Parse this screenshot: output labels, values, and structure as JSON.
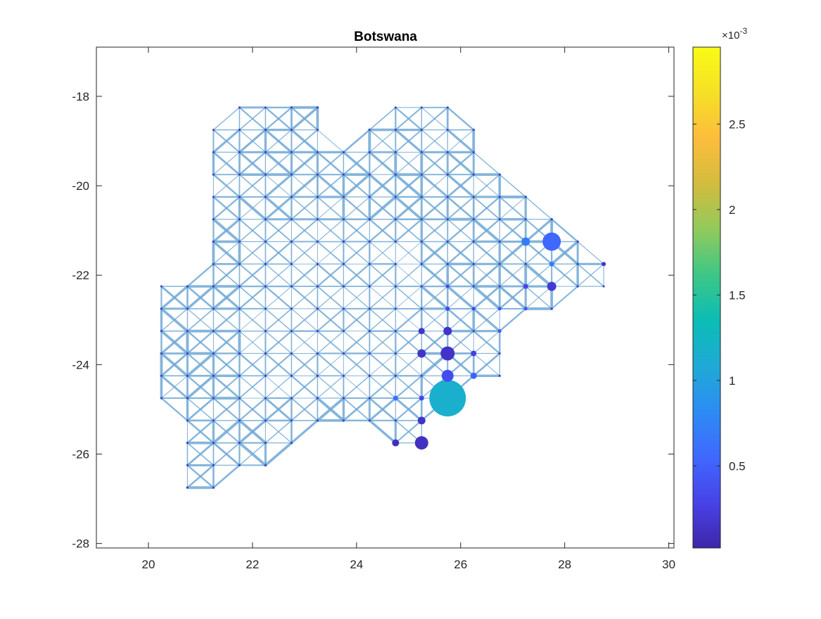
{
  "chart_data": {
    "type": "scatter",
    "title": "Botswana",
    "xlabel": "",
    "ylabel": "",
    "xlim": [
      19,
      30.1
    ],
    "ylim": [
      -28.1,
      -16.9
    ],
    "xticks": [
      20,
      22,
      24,
      26,
      28,
      30
    ],
    "yticks": [
      -18,
      -20,
      -22,
      -24,
      -26,
      -28
    ],
    "grid": false,
    "network": {
      "description": "transport network on 0.5-degree grid nodes with orthogonal and diagonal links",
      "edge_color": "#6fa8d6",
      "nodes_by_row": [
        {
          "y": -18.25,
          "x": [
            21.75,
            22.25,
            22.75,
            23.25,
            24.75,
            25.25,
            25.75
          ]
        },
        {
          "y": -18.75,
          "x": [
            21.25,
            21.75,
            22.25,
            22.75,
            23.25,
            24.25,
            24.75,
            25.25,
            25.75,
            26.25
          ]
        },
        {
          "y": -19.25,
          "x": [
            21.25,
            21.75,
            22.25,
            22.75,
            23.25,
            23.75,
            24.25,
            24.75,
            25.25,
            25.75,
            26.25
          ]
        },
        {
          "y": -19.75,
          "x": [
            21.25,
            21.75,
            22.25,
            22.75,
            23.25,
            23.75,
            24.25,
            24.75,
            25.25,
            25.75,
            26.25,
            26.75
          ]
        },
        {
          "y": -20.25,
          "x": [
            21.25,
            21.75,
            22.25,
            22.75,
            23.25,
            23.75,
            24.25,
            24.75,
            25.25,
            25.75,
            26.25,
            26.75,
            27.25
          ]
        },
        {
          "y": -20.75,
          "x": [
            21.25,
            21.75,
            22.25,
            22.75,
            23.25,
            23.75,
            24.25,
            24.75,
            25.25,
            25.75,
            26.25,
            26.75,
            27.25,
            27.75
          ]
        },
        {
          "y": -21.25,
          "x": [
            21.25,
            21.75,
            22.25,
            22.75,
            23.25,
            23.75,
            24.25,
            24.75,
            25.25,
            25.75,
            26.25,
            26.75,
            27.25,
            27.75,
            28.25
          ]
        },
        {
          "y": -21.75,
          "x": [
            21.25,
            21.75,
            22.25,
            22.75,
            23.25,
            23.75,
            24.25,
            24.75,
            25.25,
            25.75,
            26.25,
            26.75,
            27.25,
            27.75,
            28.25,
            28.75
          ]
        },
        {
          "y": -22.25,
          "x": [
            20.25,
            20.75,
            21.25,
            21.75,
            22.25,
            22.75,
            23.25,
            23.75,
            24.25,
            24.75,
            25.25,
            25.75,
            26.25,
            26.75,
            27.25,
            27.75,
            28.25,
            28.75
          ]
        },
        {
          "y": -22.75,
          "x": [
            20.25,
            20.75,
            21.25,
            21.75,
            22.25,
            22.75,
            23.25,
            23.75,
            24.25,
            24.75,
            25.25,
            25.75,
            26.25,
            26.75,
            27.25,
            27.75
          ]
        },
        {
          "y": -23.25,
          "x": [
            20.25,
            20.75,
            21.25,
            21.75,
            22.25,
            22.75,
            23.25,
            23.75,
            24.25,
            24.75,
            25.25,
            25.75,
            26.25,
            26.75
          ]
        },
        {
          "y": -23.75,
          "x": [
            20.25,
            20.75,
            21.25,
            21.75,
            22.25,
            22.75,
            23.25,
            23.75,
            24.25,
            24.75,
            25.25,
            25.75,
            26.25,
            26.75
          ]
        },
        {
          "y": -24.25,
          "x": [
            20.25,
            20.75,
            21.25,
            21.75,
            22.25,
            22.75,
            23.25,
            23.75,
            24.25,
            24.75,
            25.25,
            25.75,
            26.25,
            26.75
          ]
        },
        {
          "y": -24.75,
          "x": [
            20.25,
            20.75,
            21.25,
            21.75,
            22.25,
            22.75,
            23.25,
            23.75,
            24.25,
            24.75,
            25.25,
            25.75
          ]
        },
        {
          "y": -25.25,
          "x": [
            20.75,
            21.25,
            21.75,
            22.25,
            22.75,
            23.25,
            23.75,
            24.25,
            24.75,
            25.25
          ]
        },
        {
          "y": -25.75,
          "x": [
            20.75,
            21.25,
            21.75,
            22.25,
            22.75,
            24.75,
            25.25
          ]
        },
        {
          "y": -26.25,
          "x": [
            20.75,
            21.25,
            21.75,
            22.25
          ]
        },
        {
          "y": -26.75,
          "x": [
            20.75,
            21.25
          ]
        }
      ]
    },
    "points": [
      {
        "x": 25.75,
        "y": -24.75,
        "value": 1.15,
        "size": 52
      },
      {
        "x": 27.75,
        "y": -21.25,
        "value": 0.55,
        "size": 26
      },
      {
        "x": 25.75,
        "y": -23.75,
        "value": 0.15,
        "size": 20
      },
      {
        "x": 25.25,
        "y": -25.75,
        "value": 0.12,
        "size": 19
      },
      {
        "x": 25.75,
        "y": -24.25,
        "value": 0.35,
        "size": 17
      },
      {
        "x": 27.75,
        "y": -22.25,
        "value": 0.2,
        "size": 13
      },
      {
        "x": 27.25,
        "y": -21.25,
        "value": 0.7,
        "size": 12
      },
      {
        "x": 25.75,
        "y": -23.25,
        "value": 0.15,
        "size": 12
      },
      {
        "x": 25.25,
        "y": -23.75,
        "value": 0.15,
        "size": 12
      },
      {
        "x": 25.25,
        "y": -25.25,
        "value": 0.15,
        "size": 11
      },
      {
        "x": 24.75,
        "y": -25.75,
        "value": 0.1,
        "size": 10
      },
      {
        "x": 25.25,
        "y": -23.25,
        "value": 0.15,
        "size": 9
      },
      {
        "x": 26.25,
        "y": -24.25,
        "value": 0.5,
        "size": 9
      },
      {
        "x": 26.25,
        "y": -23.75,
        "value": 0.25,
        "size": 8
      },
      {
        "x": 24.75,
        "y": -24.75,
        "value": 0.6,
        "size": 7
      },
      {
        "x": 25.25,
        "y": -24.75,
        "value": 0.3,
        "size": 7
      },
      {
        "x": 27.75,
        "y": -21.75,
        "value": 0.7,
        "size": 7
      },
      {
        "x": 28.75,
        "y": -21.75,
        "value": 0.15,
        "size": 6
      },
      {
        "x": 27.25,
        "y": -22.25,
        "value": 0.3,
        "size": 7
      },
      {
        "x": 25.75,
        "y": -22.25,
        "value": 0.3,
        "size": 5
      },
      {
        "x": 25.75,
        "y": -22.75,
        "value": 0.3,
        "size": 6
      },
      {
        "x": 26.75,
        "y": -23.25,
        "value": 0.4,
        "size": 5
      },
      {
        "x": 26.25,
        "y": -22.75,
        "value": 0.3,
        "size": 5
      },
      {
        "x": 26.75,
        "y": -22.75,
        "value": 0.4,
        "size": 5
      },
      {
        "x": 27.25,
        "y": -22.75,
        "value": 0.4,
        "size": 5
      }
    ],
    "colorbar": {
      "ticks": [
        0.5,
        1,
        1.5,
        2,
        2.5
      ],
      "tick_labels": [
        "0.5",
        "1",
        "1.5",
        "2",
        "2.5"
      ],
      "range": [
        0.02,
        2.95
      ],
      "exponent_label": "×10",
      "exponent_power": "-3",
      "colormap": [
        "#3e26a8",
        "#4743e8",
        "#3f68fe",
        "#2d8cf3",
        "#1faad5",
        "#0bbdb5",
        "#3dc786",
        "#91ca5b",
        "#d3bc3e",
        "#fdbd3c",
        "#f5e026",
        "#f9fb15"
      ]
    }
  }
}
